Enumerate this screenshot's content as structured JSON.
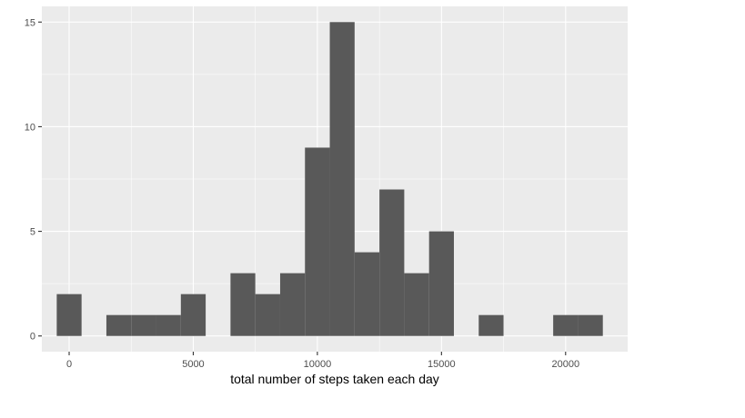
{
  "chart_data": {
    "type": "bar",
    "subtype": "histogram",
    "title": "",
    "xlabel": "total number of steps taken each day",
    "ylabel": "",
    "xlim": [
      -1100,
      22500
    ],
    "ylim": [
      -0.75,
      15.75
    ],
    "x_ticks": [
      0,
      5000,
      10000,
      15000,
      20000
    ],
    "x_tick_labels": [
      "0",
      "5000",
      "10000",
      "15000",
      "20000"
    ],
    "y_ticks": [
      0,
      5,
      10,
      15
    ],
    "y_tick_labels": [
      "0",
      "5",
      "10",
      "15"
    ],
    "bin_width": 1000,
    "bins": [
      {
        "center": 0,
        "count": 2
      },
      {
        "center": 1000,
        "count": 0
      },
      {
        "center": 2000,
        "count": 1
      },
      {
        "center": 3000,
        "count": 1
      },
      {
        "center": 4000,
        "count": 1
      },
      {
        "center": 5000,
        "count": 2
      },
      {
        "center": 6000,
        "count": 0
      },
      {
        "center": 7000,
        "count": 3
      },
      {
        "center": 8000,
        "count": 2
      },
      {
        "center": 9000,
        "count": 3
      },
      {
        "center": 10000,
        "count": 9
      },
      {
        "center": 11000,
        "count": 15
      },
      {
        "center": 12000,
        "count": 4
      },
      {
        "center": 13000,
        "count": 7
      },
      {
        "center": 14000,
        "count": 3
      },
      {
        "center": 15000,
        "count": 5
      },
      {
        "center": 16000,
        "count": 0
      },
      {
        "center": 17000,
        "count": 1
      },
      {
        "center": 18000,
        "count": 0
      },
      {
        "center": 19000,
        "count": 0
      },
      {
        "center": 20000,
        "count": 1
      },
      {
        "center": 21000,
        "count": 1
      }
    ],
    "grid": true,
    "colors": {
      "panel_background": "#ebebeb",
      "grid_major": "#ffffff",
      "bar_fill": "#595959"
    }
  }
}
